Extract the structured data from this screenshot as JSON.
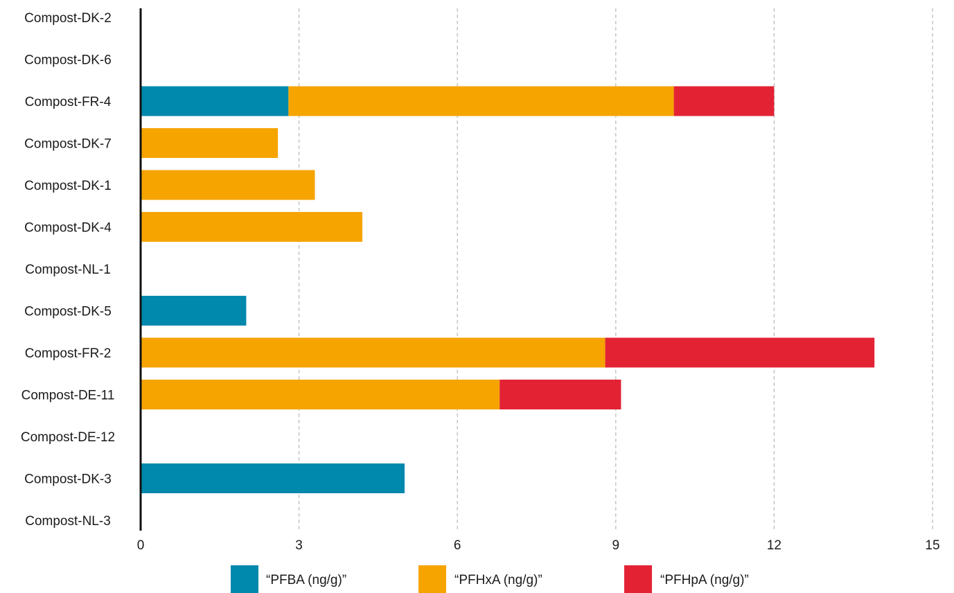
{
  "chart_data": {
    "type": "bar",
    "orientation": "horizontal",
    "stacked": true,
    "title": "",
    "xlabel": "",
    "ylabel": "",
    "xlim": [
      0,
      15
    ],
    "x_ticks": [
      0,
      3,
      6,
      9,
      12,
      15
    ],
    "grid": "vertical dashed",
    "legend_position": "bottom",
    "categories": [
      "Compost-DK-2",
      "Compost-DK-6",
      "Compost-FR-4",
      "Compost-DK-7",
      "Compost-DK-1",
      "Compost-DK-4",
      "Compost-NL-1",
      "Compost-DK-5",
      "Compost-FR-2",
      "Compost-DE-11",
      "Compost-DE-12",
      "Compost-DK-3",
      "Compost-NL-3"
    ],
    "series": [
      {
        "name": "“PFBA (ng/g)”",
        "color": "#0088ad",
        "values": [
          0,
          0,
          2.8,
          0,
          0,
          0,
          0,
          2.0,
          0,
          0,
          0,
          5.0,
          0
        ]
      },
      {
        "name": "“PFHxA (ng/g)”",
        "color": "#f5a400",
        "values": [
          0,
          0,
          7.3,
          2.6,
          3.3,
          4.2,
          0,
          0,
          8.8,
          6.8,
          0,
          0,
          0
        ]
      },
      {
        "name": "“PFHpA (ng/g)”",
        "color": "#e32334",
        "values": [
          0,
          0,
          1.9,
          0,
          0,
          0,
          0,
          0,
          5.1,
          2.3,
          0,
          0,
          0
        ]
      }
    ]
  }
}
